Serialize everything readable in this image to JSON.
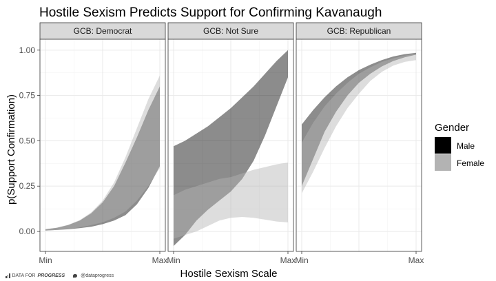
{
  "chart_data": {
    "type": "area",
    "title": "Hostile Sexism Predicts Support for Confirming Kavanaugh",
    "xlabel": "Hostile Sexism Scale",
    "ylabel": "p(Support Confirmation)",
    "x_ticks": [
      "Min",
      "Max"
    ],
    "y_ticks": [
      "0.00",
      "0.25",
      "0.50",
      "0.75",
      "1.00"
    ],
    "ylim": [
      -0.11,
      1.06
    ],
    "grid": true,
    "legend": {
      "title": "Gender",
      "position": "right",
      "entries": [
        {
          "label": "Male",
          "color": "#000000"
        },
        {
          "label": "Female",
          "color": "#b3b3b3"
        }
      ]
    },
    "x": [
      0,
      0.1,
      0.2,
      0.3,
      0.4,
      0.5,
      0.6,
      0.7,
      0.8,
      0.9,
      1.0
    ],
    "facets": [
      {
        "label": "GCB: Democrat",
        "series": [
          {
            "name": "Male",
            "lower": [
              0.005,
              0.008,
              0.012,
              0.018,
              0.026,
              0.04,
              0.06,
              0.09,
              0.15,
              0.24,
              0.36
            ],
            "upper": [
              0.012,
              0.02,
              0.035,
              0.06,
              0.1,
              0.16,
              0.25,
              0.38,
              0.52,
              0.67,
              0.8
            ]
          },
          {
            "name": "Female",
            "lower": [
              0.005,
              0.009,
              0.014,
              0.022,
              0.035,
              0.05,
              0.075,
              0.11,
              0.17,
              0.25,
              0.35
            ],
            "upper": [
              0.012,
              0.021,
              0.037,
              0.063,
              0.105,
              0.17,
              0.27,
              0.41,
              0.57,
              0.73,
              0.86
            ]
          }
        ]
      },
      {
        "label": "GCB: Not Sure",
        "series": [
          {
            "name": "Male",
            "lower": [
              -0.08,
              -0.02,
              0.06,
              0.12,
              0.17,
              0.22,
              0.29,
              0.39,
              0.53,
              0.69,
              0.85
            ],
            "upper": [
              0.47,
              0.5,
              0.54,
              0.58,
              0.63,
              0.68,
              0.74,
              0.8,
              0.87,
              0.94,
              1.0
            ]
          },
          {
            "name": "Female",
            "lower": [
              -0.04,
              -0.02,
              0.0,
              0.03,
              0.06,
              0.075,
              0.08,
              0.075,
              0.065,
              0.055,
              0.05
            ],
            "upper": [
              0.2,
              0.23,
              0.25,
              0.27,
              0.29,
              0.3,
              0.32,
              0.34,
              0.355,
              0.37,
              0.38
            ]
          }
        ]
      },
      {
        "label": "GCB: Republican",
        "series": [
          {
            "name": "Male",
            "lower": [
              0.25,
              0.4,
              0.55,
              0.66,
              0.75,
              0.82,
              0.87,
              0.91,
              0.94,
              0.96,
              0.975
            ],
            "upper": [
              0.59,
              0.67,
              0.74,
              0.8,
              0.85,
              0.89,
              0.92,
              0.945,
              0.965,
              0.978,
              0.985
            ]
          },
          {
            "name": "Female",
            "lower": [
              0.21,
              0.33,
              0.46,
              0.58,
              0.68,
              0.76,
              0.83,
              0.88,
              0.915,
              0.935,
              0.945
            ],
            "upper": [
              0.49,
              0.6,
              0.69,
              0.76,
              0.82,
              0.87,
              0.905,
              0.935,
              0.955,
              0.97,
              0.98
            ]
          }
        ]
      }
    ]
  },
  "footer": {
    "brand_prefix": "DATA FOR",
    "brand_strong": "PROGRESS",
    "handle": "@dataprogress"
  },
  "colors": {
    "male_fill": "#000000",
    "female_fill": "#b3b3b3",
    "strip_bg": "#d9d9d9",
    "grid": "#ebebeb"
  }
}
